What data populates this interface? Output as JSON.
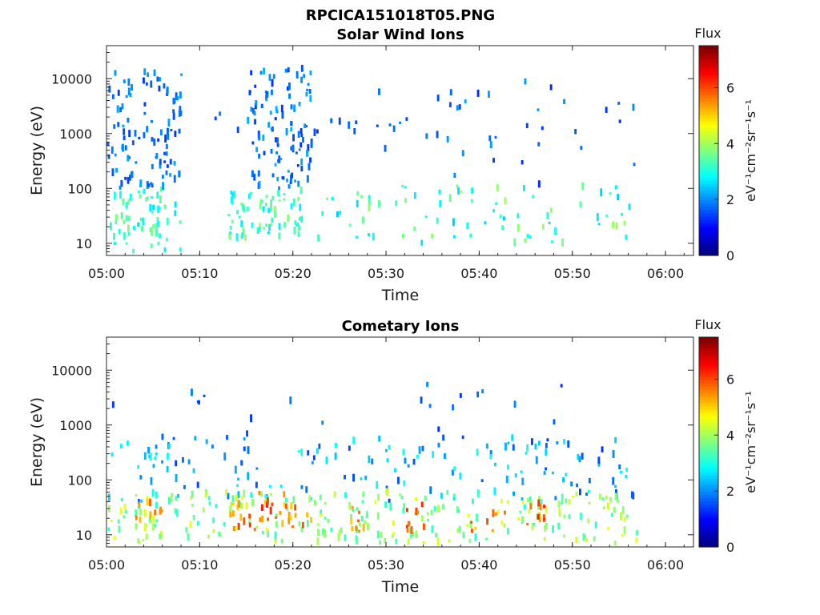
{
  "figure": {
    "title": "RPCICA151018T05.PNG"
  },
  "chart_data": [
    {
      "type": "heatmap",
      "title": "Solar Wind Ions",
      "xlabel": "Time",
      "ylabel": "Energy (eV)",
      "yscale": "log",
      "xlim": [
        "05:00",
        "06:03"
      ],
      "ylim": [
        6,
        40000
      ],
      "xticks": [
        "05:00",
        "05:10",
        "05:20",
        "05:30",
        "05:40",
        "05:50",
        "06:00"
      ],
      "yticks": [
        "10",
        "100",
        "1000",
        "10000"
      ],
      "colorbar": {
        "title": "Flux",
        "label": "eV⁻¹cm⁻²sr⁻¹s⁻¹",
        "range": [
          0,
          7.5
        ],
        "ticks": [
          "0",
          "2",
          "4",
          "6"
        ]
      },
      "clusters": [
        {
          "t": "05:00",
          "tend": "05:07",
          "emin": 7,
          "emax": 100,
          "fmin": 2.6,
          "fmax": 3.8,
          "n": 60
        },
        {
          "t": "05:00",
          "tend": "05:07",
          "emin": 100,
          "emax": 14000,
          "fmin": 1.3,
          "fmax": 2.2,
          "n": 110
        },
        {
          "t": "05:13",
          "tend": "05:20",
          "emin": 12,
          "emax": 100,
          "fmin": 2.6,
          "fmax": 3.9,
          "n": 70
        },
        {
          "t": "05:15",
          "tend": "05:21",
          "emin": 100,
          "emax": 17000,
          "fmin": 1.3,
          "fmax": 2.3,
          "n": 110
        },
        {
          "t": "05:09",
          "tend": "05:36",
          "emin": 500,
          "emax": 10000,
          "fmin": 1.3,
          "fmax": 1.9,
          "n": 25
        },
        {
          "t": "05:22",
          "tend": "05:56",
          "emin": 10,
          "emax": 120,
          "fmin": 2.4,
          "fmax": 4.0,
          "n": 80
        },
        {
          "t": "05:35",
          "tend": "05:56",
          "emin": 100,
          "emax": 9000,
          "fmin": 1.2,
          "fmax": 2.2,
          "n": 30
        }
      ]
    },
    {
      "type": "heatmap",
      "title": "Cometary Ions",
      "xlabel": "Time",
      "ylabel": "Energy (eV)",
      "yscale": "log",
      "xlim": [
        "05:00",
        "06:03"
      ],
      "ylim": [
        6,
        40000
      ],
      "xticks": [
        "05:00",
        "05:10",
        "05:20",
        "05:30",
        "05:40",
        "05:50",
        "06:00"
      ],
      "yticks": [
        "10",
        "100",
        "1000",
        "10000"
      ],
      "colorbar": {
        "title": "Flux",
        "label": "eV⁻¹cm⁻²sr⁻¹s⁻¹",
        "range": [
          0,
          7.5
        ],
        "ticks": [
          "0",
          "2",
          "4",
          "6"
        ]
      },
      "clusters": [
        {
          "t": "05:00",
          "tend": "05:56",
          "emin": 40,
          "emax": 600,
          "fmin": 1.4,
          "fmax": 3.0,
          "n": 160
        },
        {
          "t": "05:00",
          "tend": "05:56",
          "emin": 7,
          "emax": 60,
          "fmin": 3.0,
          "fmax": 4.6,
          "n": 260
        },
        {
          "t": "05:03",
          "tend": "05:05",
          "emin": 15,
          "emax": 40,
          "fmin": 5.0,
          "fmax": 6.0,
          "n": 10
        },
        {
          "t": "05:13",
          "tend": "05:15",
          "emin": 12,
          "emax": 40,
          "fmin": 5.0,
          "fmax": 6.3,
          "n": 12
        },
        {
          "t": "05:16",
          "tend": "05:18",
          "emin": 15,
          "emax": 60,
          "fmin": 5.0,
          "fmax": 6.5,
          "n": 14
        },
        {
          "t": "05:19",
          "tend": "05:21",
          "emin": 12,
          "emax": 40,
          "fmin": 5.0,
          "fmax": 6.3,
          "n": 12
        },
        {
          "t": "05:26",
          "tend": "05:27",
          "emin": 10,
          "emax": 40,
          "fmin": 5.0,
          "fmax": 6.0,
          "n": 8
        },
        {
          "t": "05:32",
          "tend": "05:33",
          "emin": 12,
          "emax": 40,
          "fmin": 5.5,
          "fmax": 6.6,
          "n": 10
        },
        {
          "t": "05:45",
          "tend": "05:46",
          "emin": 15,
          "emax": 40,
          "fmin": 5.2,
          "fmax": 6.4,
          "n": 10
        },
        {
          "t": "05:39",
          "tend": "05:42",
          "emin": 10,
          "emax": 30,
          "fmin": 5.0,
          "fmax": 6.0,
          "n": 8
        },
        {
          "t": "05:00",
          "tend": "05:56",
          "emin": 300,
          "emax": 7000,
          "fmin": 1.3,
          "fmax": 2.0,
          "n": 25
        }
      ]
    }
  ]
}
